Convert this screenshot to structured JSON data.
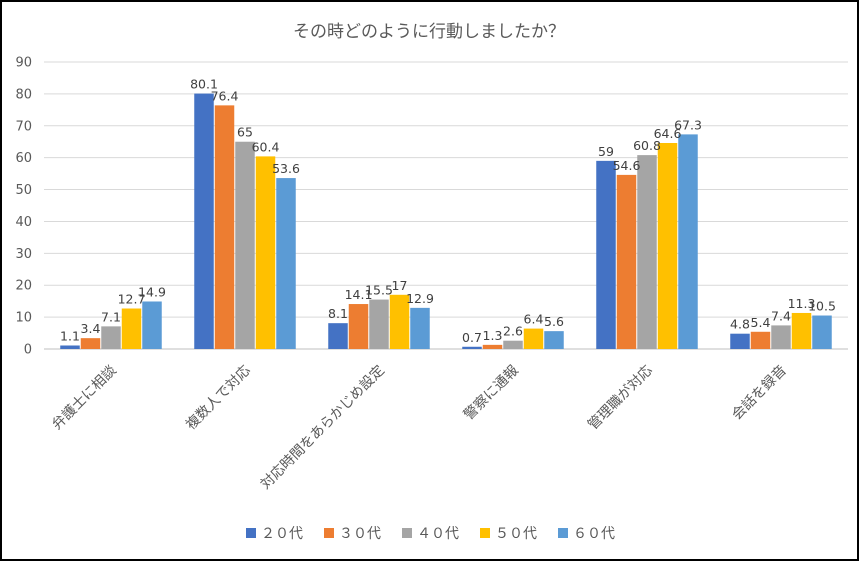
{
  "chart_data": {
    "type": "bar",
    "title": "その時どのように行動しましたか？",
    "categories": [
      "弁護士に相談",
      "複数人で対応",
      "対応時間をあらかじめ設定",
      "警察に通報",
      "管理職が対応",
      "会話を録音"
    ],
    "series": [
      {
        "name": "２０代",
        "color": "#4472C4",
        "values": [
          1.1,
          80.1,
          8.1,
          0.7,
          59,
          4.8
        ]
      },
      {
        "name": "３０代",
        "color": "#ED7D31",
        "values": [
          3.4,
          76.4,
          14.1,
          1.3,
          54.6,
          5.4
        ]
      },
      {
        "name": "４０代",
        "color": "#A5A5A5",
        "values": [
          7.1,
          65,
          15.5,
          2.6,
          60.8,
          7.4
        ]
      },
      {
        "name": "５０代",
        "color": "#FFC000",
        "values": [
          12.7,
          60.4,
          17,
          6.4,
          64.6,
          11.3
        ]
      },
      {
        "name": "６０代",
        "color": "#5B9BD5",
        "values": [
          14.9,
          53.6,
          12.9,
          5.6,
          67.3,
          10.5
        ]
      }
    ],
    "ylim": [
      0,
      90
    ],
    "yticks": [
      0,
      10,
      20,
      30,
      40,
      50,
      60,
      70,
      80,
      90
    ],
    "grid": true,
    "legend": "bottom"
  }
}
